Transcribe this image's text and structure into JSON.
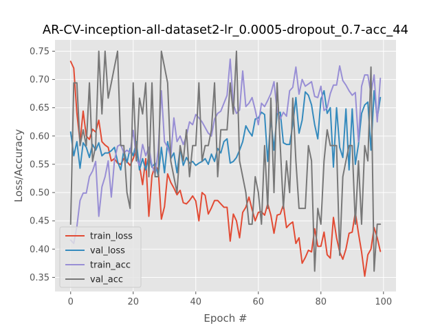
{
  "chart_data": {
    "type": "line",
    "title": "AR-CV-inception-all-dataset2-lr_0.0005-dropout_0.7-acc_44",
    "xlabel": "Epoch #",
    "ylabel": "Loss/Accuracy",
    "xlim": [
      -5,
      104
    ],
    "ylim": [
      0.325,
      0.77
    ],
    "xticks": [
      0,
      20,
      40,
      60,
      80,
      100
    ],
    "yticks": [
      0.35,
      0.4,
      0.45,
      0.5,
      0.55,
      0.6,
      0.65,
      0.7,
      0.75
    ],
    "grid": true,
    "legend_position": "lower-left",
    "x": [
      0,
      1,
      2,
      3,
      4,
      5,
      6,
      7,
      8,
      9,
      10,
      11,
      12,
      13,
      14,
      15,
      16,
      17,
      18,
      19,
      20,
      21,
      22,
      23,
      24,
      25,
      26,
      27,
      28,
      29,
      30,
      31,
      32,
      33,
      34,
      35,
      36,
      37,
      38,
      39,
      40,
      41,
      42,
      43,
      44,
      45,
      46,
      47,
      48,
      49,
      50,
      51,
      52,
      53,
      54,
      55,
      56,
      57,
      58,
      59,
      60,
      61,
      62,
      63,
      64,
      65,
      66,
      67,
      68,
      69,
      70,
      71,
      72,
      73,
      74,
      75,
      76,
      77,
      78,
      79,
      80,
      81,
      82,
      83,
      84,
      85,
      86,
      87,
      88,
      89,
      90,
      91,
      92,
      93,
      94,
      95,
      96,
      97,
      98,
      99
    ],
    "series": [
      {
        "name": "train_loss",
        "color": "#e24a33",
        "values": [
          0.732,
          0.72,
          0.64,
          0.59,
          0.644,
          0.6,
          0.594,
          0.612,
          0.607,
          0.628,
          0.59,
          0.584,
          0.58,
          0.556,
          0.56,
          0.552,
          0.55,
          0.56,
          0.555,
          0.548,
          0.56,
          0.575,
          0.548,
          0.514,
          0.56,
          0.458,
          0.53,
          0.548,
          0.54,
          0.453,
          0.475,
          0.533,
          0.518,
          0.508,
          0.496,
          0.504,
          0.482,
          0.48,
          0.486,
          0.494,
          0.485,
          0.45,
          0.5,
          0.495,
          0.462,
          0.473,
          0.486,
          0.486,
          0.48,
          0.474,
          0.474,
          0.414,
          0.462,
          0.45,
          0.42,
          0.465,
          0.474,
          0.492,
          0.47,
          0.45,
          0.465,
          0.466,
          0.46,
          0.48,
          0.46,
          0.428,
          0.46,
          0.462,
          0.478,
          0.438,
          0.444,
          0.448,
          0.41,
          0.42,
          0.375,
          0.385,
          0.398,
          0.395,
          0.436,
          0.405,
          0.405,
          0.43,
          0.39,
          0.384,
          0.456,
          0.42,
          0.395,
          0.382,
          0.4,
          0.428,
          0.43,
          0.465,
          0.428,
          0.395,
          0.352,
          0.39,
          0.4,
          0.438,
          0.42,
          0.396
        ]
      },
      {
        "name": "val_loss",
        "color": "#348abd",
        "values": [
          0.607,
          0.565,
          0.59,
          0.543,
          0.588,
          0.58,
          0.562,
          0.585,
          0.575,
          0.588,
          0.565,
          0.57,
          0.57,
          0.574,
          0.58,
          0.555,
          0.54,
          0.575,
          0.553,
          0.578,
          0.565,
          0.59,
          0.54,
          0.56,
          0.54,
          0.565,
          0.545,
          0.552,
          0.53,
          0.58,
          0.535,
          0.59,
          0.56,
          0.57,
          0.535,
          0.578,
          0.548,
          0.562,
          0.552,
          0.555,
          0.548,
          0.552,
          0.555,
          0.56,
          0.55,
          0.568,
          0.555,
          0.578,
          0.57,
          0.59,
          0.595,
          0.552,
          0.555,
          0.562,
          0.575,
          0.59,
          0.618,
          0.608,
          0.6,
          0.63,
          0.632,
          0.642,
          0.638,
          0.555,
          0.632,
          0.575,
          0.64,
          0.642,
          0.588,
          0.585,
          0.585,
          0.62,
          0.668,
          0.605,
          0.628,
          0.678,
          0.672,
          0.655,
          0.62,
          0.595,
          0.665,
          0.68,
          0.64,
          0.65,
          0.545,
          0.65,
          0.58,
          0.562,
          0.648,
          0.54,
          0.648,
          0.55,
          0.585,
          0.64,
          0.655,
          0.66,
          0.575,
          0.68,
          0.632,
          0.668
        ]
      },
      {
        "name": "train_acc",
        "color": "#988ed5",
        "values": [
          0.416,
          0.41,
          0.44,
          0.486,
          0.499,
          0.499,
          0.528,
          0.538,
          0.555,
          0.458,
          0.51,
          0.528,
          0.556,
          0.492,
          0.556,
          0.582,
          0.585,
          0.57,
          0.575,
          0.57,
          0.61,
          0.56,
          0.548,
          0.585,
          0.565,
          0.58,
          0.548,
          0.533,
          0.575,
          0.68,
          0.59,
          0.58,
          0.563,
          0.632,
          0.59,
          0.6,
          0.585,
          0.6,
          0.625,
          0.62,
          0.638,
          0.632,
          0.625,
          0.615,
          0.605,
          0.6,
          0.63,
          0.64,
          0.644,
          0.658,
          0.672,
          0.736,
          0.656,
          0.64,
          0.646,
          0.715,
          0.652,
          0.658,
          0.668,
          0.646,
          0.62,
          0.658,
          0.652,
          0.663,
          0.675,
          0.696,
          0.645,
          0.63,
          0.642,
          0.635,
          0.68,
          0.686,
          0.722,
          0.674,
          0.7,
          0.688,
          0.692,
          0.696,
          0.67,
          0.668,
          0.688,
          0.645,
          0.65,
          0.675,
          0.69,
          0.69,
          0.724,
          0.698,
          0.69,
          0.68,
          0.672,
          0.677,
          0.59,
          0.688,
          0.708,
          0.708,
          0.675,
          0.708,
          0.625,
          0.702
        ]
      },
      {
        "name": "val_acc",
        "color": "#777777",
        "values": [
          0.444,
          0.694,
          0.694,
          0.583,
          0.611,
          0.583,
          0.694,
          0.555,
          0.583,
          0.75,
          0.639,
          0.75,
          0.667,
          0.694,
          0.722,
          0.75,
          0.583,
          0.583,
          0.5,
          0.472,
          0.694,
          0.556,
          0.667,
          0.639,
          0.694,
          0.528,
          0.694,
          0.528,
          0.528,
          0.75,
          0.722,
          0.694,
          0.556,
          0.528,
          0.5,
          0.583,
          0.556,
          0.611,
          0.528,
          0.583,
          0.583,
          0.694,
          0.556,
          0.583,
          0.583,
          0.611,
          0.694,
          0.528,
          0.611,
          0.611,
          0.611,
          0.694,
          0.639,
          0.75,
          0.556,
          0.528,
          0.5,
          0.444,
          0.444,
          0.528,
          0.5,
          0.444,
          0.583,
          0.472,
          0.667,
          0.5,
          0.694,
          0.583,
          0.472,
          0.556,
          0.5,
          0.667,
          0.556,
          0.472,
          0.472,
          0.472,
          0.583,
          0.556,
          0.361,
          0.472,
          0.444,
          0.556,
          0.611,
          0.583,
          0.583,
          0.583,
          0.389,
          0.528,
          0.556,
          0.583,
          0.583,
          0.444,
          0.556,
          0.444,
          0.583,
          0.556,
          0.722,
          0.361,
          0.444,
          0.444
        ]
      }
    ]
  }
}
